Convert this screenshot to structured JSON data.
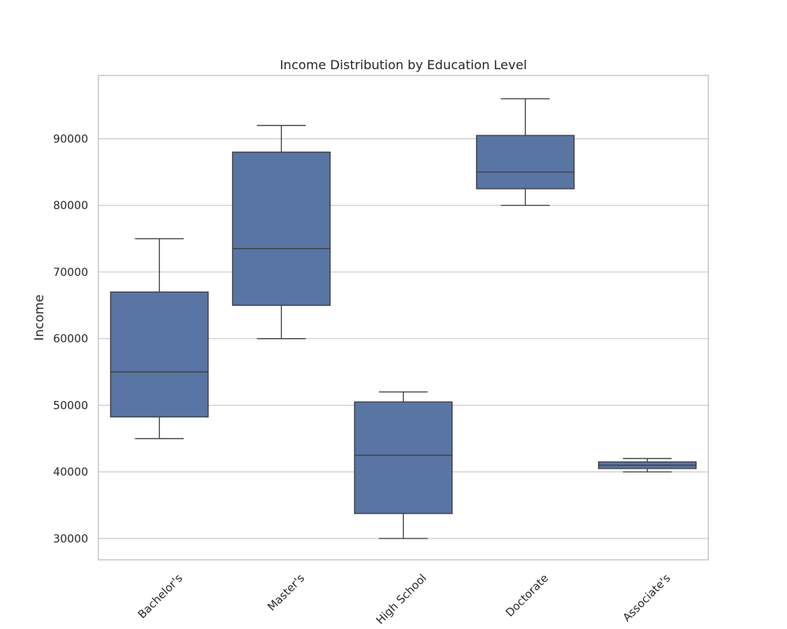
{
  "chart_data": {
    "type": "boxplot",
    "title": "Income Distribution by Education Level",
    "xlabel": "",
    "ylabel": "Income",
    "ylim": [
      26800,
      99500
    ],
    "yticks": [
      30000,
      40000,
      50000,
      60000,
      70000,
      80000,
      90000
    ],
    "grid": true,
    "categories": [
      "Bachelor's",
      "Master's",
      "High School",
      "Doctorate",
      "Associate's"
    ],
    "boxes": [
      {
        "category": "Bachelor's",
        "whisker_low": 45000,
        "q1": 48250,
        "median": 55000,
        "q3": 67000,
        "whisker_high": 75000
      },
      {
        "category": "Master's",
        "whisker_low": 60000,
        "q1": 65000,
        "median": 73500,
        "q3": 88000,
        "whisker_high": 92000
      },
      {
        "category": "High School",
        "whisker_low": 30000,
        "q1": 33750,
        "median": 42500,
        "q3": 50500,
        "whisker_high": 52000
      },
      {
        "category": "Doctorate",
        "whisker_low": 80000,
        "q1": 82500,
        "median": 85000,
        "q3": 90500,
        "whisker_high": 96000
      },
      {
        "category": "Associate's",
        "whisker_low": 40000,
        "q1": 40500,
        "median": 41000,
        "q3": 41500,
        "whisker_high": 42000
      }
    ],
    "box_color": "#5875a4",
    "line_color": "#3f3f3f",
    "grid_color": "#cccccc"
  }
}
